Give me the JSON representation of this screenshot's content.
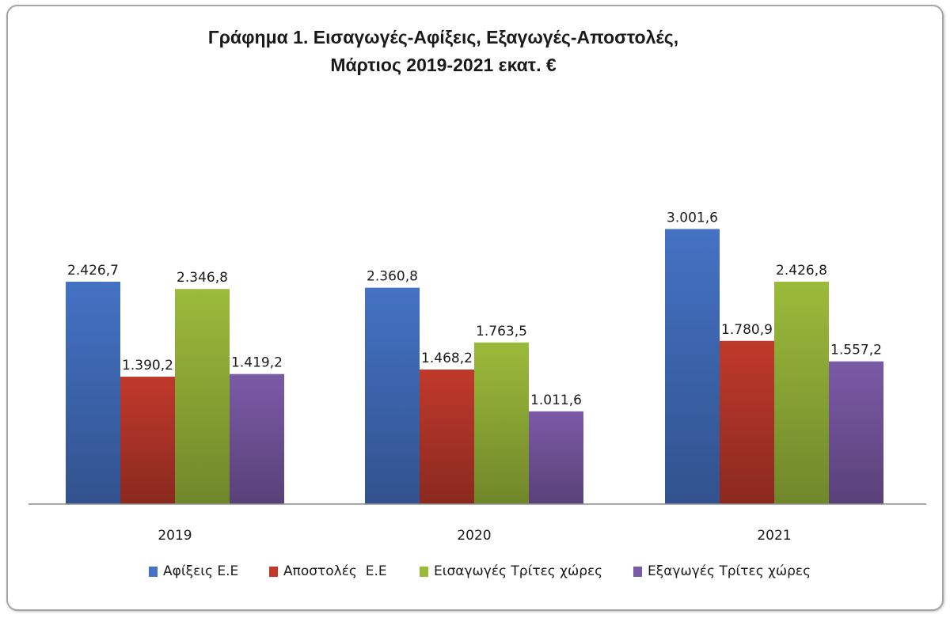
{
  "chart_data": {
    "type": "bar",
    "title_line1": "Γράφημα 1. Εισαγωγές-Αφίξεις, Εξαγωγές-Αποστολές,",
    "title_line2": "Μάρτιος 2019-2021 εκατ. €",
    "xlabel": "",
    "ylabel": "",
    "ylim": [
      0,
      3000
    ],
    "grid": false,
    "legend_position": "bottom",
    "categories": [
      "2019",
      "2020",
      "2021"
    ],
    "series": [
      {
        "name": "Αφίξεις Ε.Ε",
        "color": "#4472c4",
        "values": [
          2426.7,
          2360.8,
          3001.6
        ],
        "labels": [
          "2.426,7",
          "2.360,8",
          "3.001,6"
        ]
      },
      {
        "name": "Αποστολές  Ε.Ε",
        "color": "#c0392b",
        "values": [
          1390.2,
          1468.2,
          1780.9
        ],
        "labels": [
          "1.390,2",
          "1.468,2",
          "1.780,9"
        ]
      },
      {
        "name": "Εισαγωγές Τρίτες χώρες",
        "color": "#9bbb3b",
        "values": [
          2346.8,
          1763.5,
          2426.8
        ],
        "labels": [
          "2.346,8",
          "1.763,5",
          "2.426,8"
        ]
      },
      {
        "name": "Εξαγωγές Τρίτες χώρες",
        "color": "#7b5aa6",
        "values": [
          1419.2,
          1011.6,
          1557.2
        ],
        "labels": [
          "1.419,2",
          "1.011,6",
          "1.557,2"
        ]
      }
    ]
  }
}
